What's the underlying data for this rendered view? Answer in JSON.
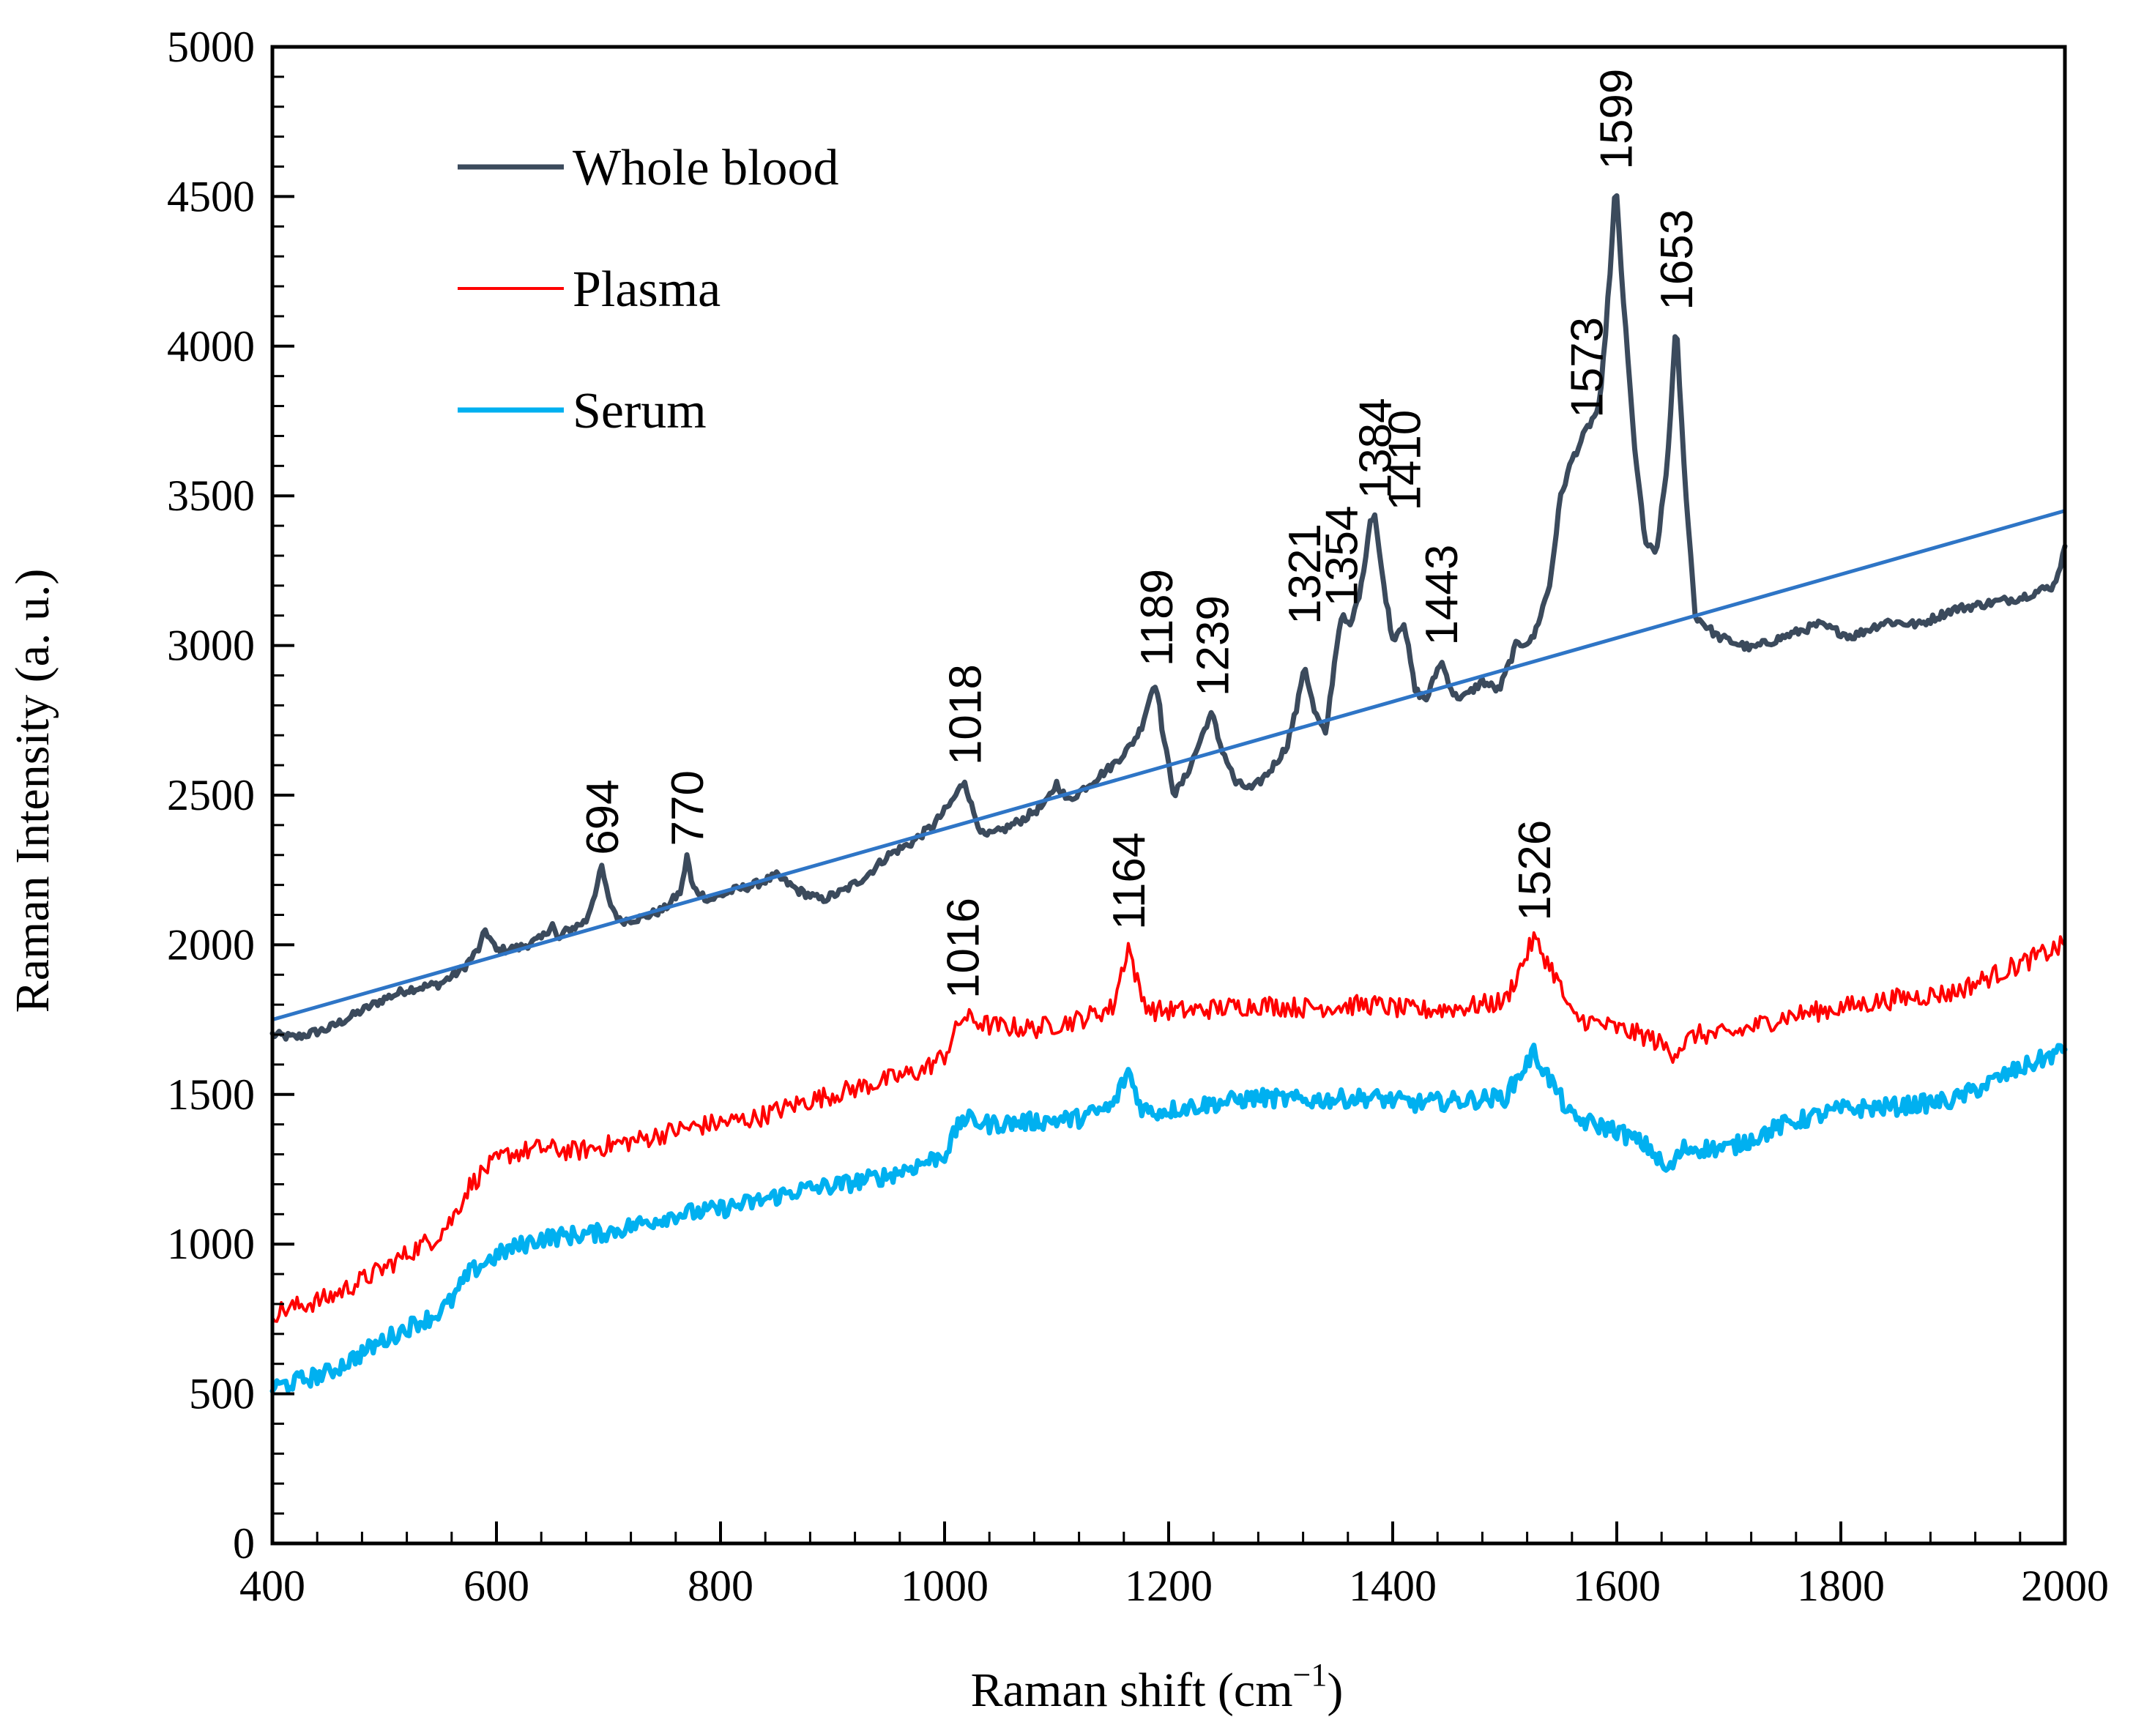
{
  "chart_data": {
    "type": "line",
    "title": "",
    "xlabel": "Raman shift (cm",
    "xlabel_sup": "−1",
    "xlabel_tail": ")",
    "ylabel": "Raman Intensity (a. u.)",
    "xlim": [
      400,
      2000
    ],
    "ylim": [
      0,
      5000
    ],
    "x_ticks": [
      400,
      600,
      800,
      1000,
      1200,
      1400,
      1600,
      1800,
      2000
    ],
    "y_ticks": [
      0,
      500,
      1000,
      1500,
      2000,
      2500,
      3000,
      3500,
      4000,
      4500,
      5000
    ],
    "x_minor_step": 40,
    "y_minor_step": 100,
    "grid": false,
    "legend_position": "top-left",
    "series": [
      {
        "name": "Whole blood",
        "color": "#3b4a5c",
        "x": [
          400,
          420,
          450,
          480,
          500,
          520,
          550,
          570,
          585,
          590,
          600,
          620,
          640,
          650,
          655,
          660,
          680,
          690,
          694,
          700,
          710,
          730,
          750,
          765,
          770,
          775,
          790,
          810,
          830,
          850,
          870,
          890,
          910,
          930,
          950,
          970,
          990,
          1005,
          1010,
          1018,
          1025,
          1035,
          1050,
          1070,
          1090,
          1100,
          1110,
          1130,
          1150,
          1165,
          1175,
          1185,
          1189,
          1195,
          1205,
          1215,
          1225,
          1235,
          1239,
          1245,
          1260,
          1275,
          1290,
          1305,
          1315,
          1321,
          1330,
          1340,
          1350,
          1354,
          1362,
          1372,
          1380,
          1384,
          1390,
          1400,
          1410,
          1420,
          1430,
          1443,
          1455,
          1465,
          1480,
          1495,
          1510,
          1525,
          1540,
          1550,
          1560,
          1573,
          1585,
          1595,
          1599,
          1605,
          1615,
          1625,
          1635,
          1645,
          1653,
          1660,
          1670,
          1690,
          1720,
          1750,
          1780,
          1810,
          1840,
          1870,
          1900,
          1930,
          1960,
          1990,
          2000
        ],
        "y": [
          1700,
          1690,
          1720,
          1780,
          1820,
          1850,
          1870,
          1920,
          1990,
          2050,
          1980,
          1990,
          2020,
          2070,
          2010,
          2040,
          2080,
          2200,
          2260,
          2150,
          2080,
          2090,
          2120,
          2180,
          2300,
          2190,
          2150,
          2180,
          2200,
          2230,
          2180,
          2150,
          2180,
          2230,
          2300,
          2340,
          2400,
          2470,
          2500,
          2550,
          2450,
          2360,
          2380,
          2420,
          2470,
          2540,
          2480,
          2540,
          2600,
          2660,
          2720,
          2850,
          2880,
          2700,
          2500,
          2560,
          2650,
          2750,
          2770,
          2680,
          2540,
          2520,
          2580,
          2660,
          2800,
          2940,
          2780,
          2700,
          3000,
          3100,
          3060,
          3200,
          3420,
          3440,
          3250,
          3020,
          3080,
          2850,
          2820,
          2950,
          2830,
          2830,
          2880,
          2850,
          3000,
          3020,
          3200,
          3500,
          3620,
          3720,
          3800,
          4300,
          4550,
          4200,
          3700,
          3350,
          3300,
          3600,
          4080,
          3600,
          3100,
          3030,
          2990,
          3030,
          3070,
          3030,
          3080,
          3070,
          3120,
          3140,
          3160,
          3200,
          3320
        ]
      },
      {
        "name": "Plasma",
        "color": "#ff0000",
        "x": [
          400,
          450,
          500,
          530,
          545,
          560,
          575,
          590,
          610,
          640,
          670,
          700,
          730,
          760,
          790,
          830,
          870,
          910,
          950,
          980,
          1000,
          1016,
          1040,
          1080,
          1120,
          1150,
          1164,
          1175,
          1185,
          1220,
          1280,
          1320,
          1380,
          1420,
          1460,
          1500,
          1526,
          1545,
          1560,
          1600,
          1630,
          1650,
          1670,
          1700,
          1750,
          1800,
          1850,
          1900,
          1950,
          2000
        ],
        "y": [
          770,
          820,
          920,
          990,
          1020,
          1080,
          1190,
          1250,
          1300,
          1320,
          1310,
          1330,
          1350,
          1380,
          1400,
          1420,
          1470,
          1510,
          1550,
          1580,
          1630,
          1760,
          1730,
          1720,
          1750,
          1790,
          2000,
          1830,
          1780,
          1780,
          1800,
          1790,
          1800,
          1780,
          1790,
          1810,
          2020,
          1900,
          1760,
          1720,
          1690,
          1640,
          1700,
          1700,
          1760,
          1790,
          1820,
          1840,
          1920,
          2000
        ]
      },
      {
        "name": "Serum",
        "color": "#00b0f0",
        "x": [
          400,
          450,
          500,
          530,
          545,
          560,
          575,
          590,
          610,
          640,
          670,
          700,
          730,
          760,
          790,
          830,
          870,
          910,
          950,
          980,
          1000,
          1016,
          1040,
          1080,
          1120,
          1150,
          1164,
          1175,
          1185,
          1220,
          1280,
          1320,
          1380,
          1420,
          1460,
          1500,
          1526,
          1545,
          1560,
          1600,
          1630,
          1645,
          1660,
          1700,
          1750,
          1800,
          1850,
          1900,
          1950,
          2000
        ],
        "y": [
          520,
          570,
          680,
          740,
          760,
          810,
          900,
          940,
          980,
          1020,
          1030,
          1040,
          1070,
          1100,
          1110,
          1140,
          1180,
          1200,
          1230,
          1270,
          1300,
          1420,
          1400,
          1410,
          1420,
          1460,
          1580,
          1460,
          1440,
          1460,
          1490,
          1480,
          1490,
          1470,
          1480,
          1490,
          1640,
          1520,
          1420,
          1380,
          1320,
          1240,
          1320,
          1320,
          1400,
          1450,
          1460,
          1480,
          1570,
          1650
        ]
      },
      {
        "name": "",
        "color": "#2e75c6",
        "x": [
          400,
          2000
        ],
        "y": [
          1750,
          3450
        ]
      }
    ],
    "annotations": [
      {
        "text": "694",
        "x": 694,
        "y": 2300
      },
      {
        "text": "770",
        "x": 770,
        "y": 2330
      },
      {
        "text": "1018",
        "x": 1018,
        "y": 2600
      },
      {
        "text": "1189",
        "x": 1189,
        "y": 2930
      },
      {
        "text": "1239",
        "x": 1239,
        "y": 2830
      },
      {
        "text": "1321",
        "x": 1321,
        "y": 3070
      },
      {
        "text": "1354",
        "x": 1354,
        "y": 3130
      },
      {
        "text": "1384",
        "x": 1384,
        "y": 3490
      },
      {
        "text": "1410",
        "x": 1410,
        "y": 3450
      },
      {
        "text": "1443",
        "x": 1443,
        "y": 3000
      },
      {
        "text": "1573",
        "x": 1573,
        "y": 3760
      },
      {
        "text": "1599",
        "x": 1599,
        "y": 4590
      },
      {
        "text": "1653",
        "x": 1653,
        "y": 4120
      },
      {
        "text": "1016",
        "x": 1016,
        "y": 1820
      },
      {
        "text": "1164",
        "x": 1164,
        "y": 2050
      },
      {
        "text": "1526",
        "x": 1526,
        "y": 2080
      }
    ]
  }
}
